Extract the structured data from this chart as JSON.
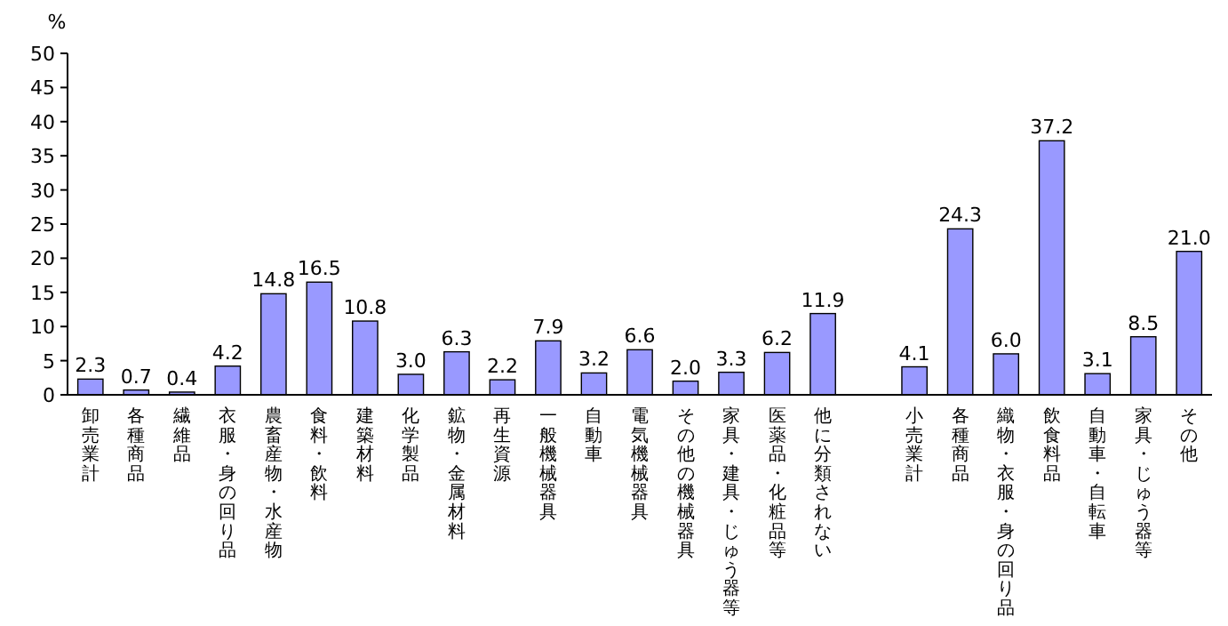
{
  "chart_data": {
    "type": "bar",
    "ylabel": "%",
    "categories": [
      "卸売業計",
      "各種商品",
      "繊維品",
      "衣服・身の回り品",
      "農畜産物・水産物",
      "食料・飲料",
      "建築材料",
      "化学製品",
      "鉱物・金属材料",
      "再生資源",
      "一般機械器具",
      "自動車",
      "電気機械器具",
      "その他の機械器具",
      "家具・建具・じゅう器等",
      "医薬品・化粧品等",
      "他に分類されない",
      null,
      "小売業計",
      "各種商品",
      "織物・衣服・身の回り品",
      "飲食料品",
      "自動車・自転車",
      "家具・じゅう器等",
      "その他"
    ],
    "values": [
      2.3,
      0.7,
      0.4,
      4.2,
      14.8,
      16.5,
      10.8,
      3.0,
      6.3,
      2.2,
      7.9,
      3.2,
      6.6,
      2.0,
      3.3,
      6.2,
      11.9,
      null,
      4.1,
      24.3,
      6.0,
      37.2,
      3.1,
      8.5,
      21.0
    ],
    "value_labels": [
      "2.3",
      "0.7",
      "0.4",
      "4.2",
      "14.8",
      "16.5",
      "10.8",
      "3.0",
      "6.3",
      "2.2",
      "7.9",
      "3.2",
      "6.6",
      "2.0",
      "3.3",
      "6.2",
      "11.9",
      null,
      "4.1",
      "24.3",
      "6.0",
      "37.2",
      "3.1",
      "8.5",
      "21.0"
    ],
    "color": "#9999ff",
    "ylim": [
      0,
      50
    ],
    "yticks": [
      0,
      5,
      10,
      15,
      20,
      25,
      30,
      35,
      40,
      45,
      50
    ],
    "grid": false
  }
}
